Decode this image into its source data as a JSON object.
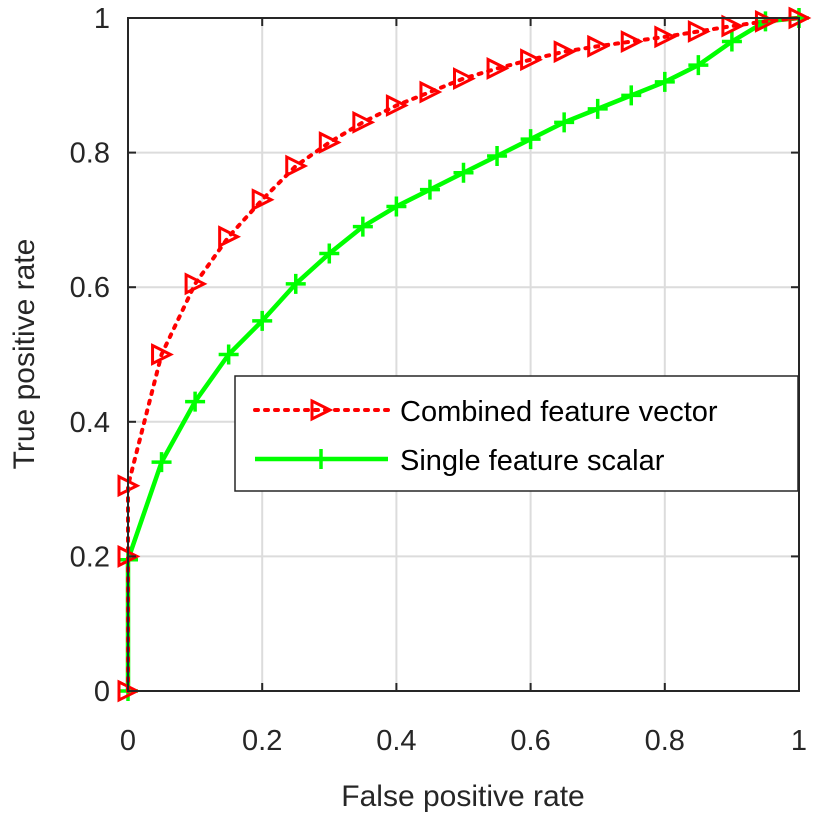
{
  "chart_data": {
    "type": "line",
    "xlabel": "False positive rate",
    "ylabel": "True positive rate",
    "xlim": [
      0,
      1
    ],
    "ylim": [
      0,
      1
    ],
    "xticks": [
      0,
      0.2,
      0.4,
      0.6,
      0.8,
      1
    ],
    "yticks": [
      0,
      0.2,
      0.4,
      0.6,
      0.8,
      1
    ],
    "xtick_labels": [
      "0",
      "0.2",
      "0.4",
      "0.6",
      "0.8",
      "1"
    ],
    "ytick_labels": [
      "0",
      "0.2",
      "0.4",
      "0.6",
      "0.8",
      "1"
    ],
    "grid": true,
    "legend_position": "center-right",
    "series": [
      {
        "name": "Combined feature vector",
        "color": "#ff0000",
        "line_style": "dotted",
        "marker": "triangle-right",
        "x": [
          0,
          0.0,
          0.0,
          0.05,
          0.1,
          0.15,
          0.2,
          0.25,
          0.3,
          0.35,
          0.4,
          0.45,
          0.5,
          0.55,
          0.6,
          0.65,
          0.7,
          0.75,
          0.8,
          0.85,
          0.9,
          0.95,
          1.0
        ],
        "y": [
          0,
          0.2,
          0.305,
          0.5,
          0.605,
          0.675,
          0.73,
          0.78,
          0.815,
          0.845,
          0.87,
          0.89,
          0.91,
          0.925,
          0.938,
          0.95,
          0.958,
          0.965,
          0.972,
          0.98,
          0.988,
          0.995,
          1.0
        ]
      },
      {
        "name": "Single feature scalar",
        "color": "#00ff00",
        "line_style": "solid",
        "marker": "plus",
        "x": [
          0,
          0.0,
          0.05,
          0.1,
          0.15,
          0.2,
          0.25,
          0.3,
          0.35,
          0.4,
          0.45,
          0.5,
          0.55,
          0.6,
          0.65,
          0.7,
          0.75,
          0.8,
          0.85,
          0.9,
          0.95,
          1.0
        ],
        "y": [
          0,
          0.195,
          0.34,
          0.43,
          0.5,
          0.55,
          0.605,
          0.65,
          0.69,
          0.72,
          0.745,
          0.77,
          0.795,
          0.82,
          0.845,
          0.865,
          0.885,
          0.905,
          0.93,
          0.965,
          0.995,
          1.0
        ]
      }
    ]
  }
}
